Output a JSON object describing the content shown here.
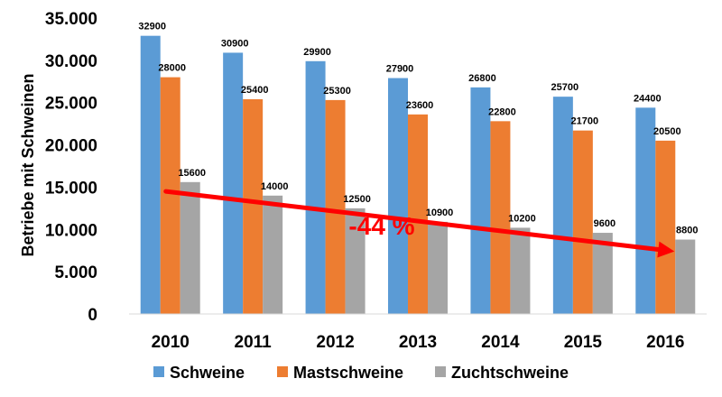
{
  "chart_data": {
    "type": "bar",
    "categories": [
      "2010",
      "2011",
      "2012",
      "2013",
      "2014",
      "2015",
      "2016"
    ],
    "series": [
      {
        "name": "Schweine",
        "color": "#5b9bd5",
        "values": [
          32900,
          30900,
          29900,
          27900,
          26800,
          25700,
          24400
        ]
      },
      {
        "name": "Mastschweine",
        "color": "#ed7d31",
        "values": [
          28000,
          25400,
          25300,
          23600,
          22800,
          21700,
          20500
        ]
      },
      {
        "name": "Zuchtschweine",
        "color": "#a5a5a5",
        "values": [
          15600,
          14000,
          12500,
          10900,
          10200,
          9600,
          8800
        ]
      }
    ],
    "ylabel": "Betriebe mit Schweinen",
    "ylim": [
      0,
      35000
    ],
    "yticks": [
      "0",
      "5.000",
      "10.000",
      "15.000",
      "20.000",
      "25.000",
      "30.000",
      "35.000"
    ],
    "grid": false,
    "legend": "bottom",
    "annotation": {
      "text": "-44 %",
      "color": "#ff0000",
      "arrow_from": {
        "category": "2010",
        "value": 14500
      },
      "arrow_to": {
        "category": "2016",
        "value": 7400
      }
    }
  }
}
